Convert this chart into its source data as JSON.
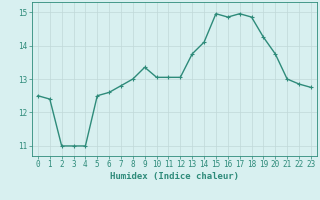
{
  "x": [
    0,
    1,
    2,
    3,
    4,
    5,
    6,
    7,
    8,
    9,
    10,
    11,
    12,
    13,
    14,
    15,
    16,
    17,
    18,
    19,
    20,
    21,
    22,
    23
  ],
  "y": [
    12.5,
    12.4,
    11.0,
    11.0,
    11.0,
    12.5,
    12.6,
    12.8,
    13.0,
    13.35,
    13.05,
    13.05,
    13.05,
    13.75,
    14.1,
    14.95,
    14.85,
    14.95,
    14.85,
    14.25,
    13.75,
    13.0,
    12.85,
    12.75
  ],
  "line_color": "#2e8b7a",
  "marker": "+",
  "bg_color": "#d8f0f0",
  "grid_color": "#c0d8d8",
  "xlabel": "Humidex (Indice chaleur)",
  "xlim": [
    -0.5,
    23.5
  ],
  "ylim": [
    10.7,
    15.3
  ],
  "yticks": [
    11,
    12,
    13,
    14,
    15
  ],
  "xticks": [
    0,
    1,
    2,
    3,
    4,
    5,
    6,
    7,
    8,
    9,
    10,
    11,
    12,
    13,
    14,
    15,
    16,
    17,
    18,
    19,
    20,
    21,
    22,
    23
  ],
  "xlabel_fontsize": 6.5,
  "tick_fontsize": 5.5,
  "line_width": 1.0,
  "marker_size": 3
}
